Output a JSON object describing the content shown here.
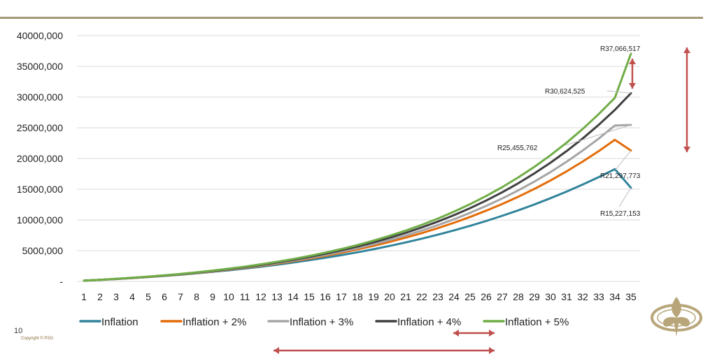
{
  "slide": {
    "page_number": "10",
    "copyright": "Copyright © PSG",
    "colors": {
      "rule": "#a39878",
      "arrow": "#c0504d",
      "logo": "#b8a67a"
    }
  },
  "chart_data": {
    "type": "line",
    "title": "",
    "xlabel": "",
    "ylabel": "",
    "x": [
      1,
      2,
      3,
      4,
      5,
      6,
      7,
      8,
      9,
      10,
      11,
      12,
      13,
      14,
      15,
      16,
      17,
      18,
      19,
      20,
      21,
      22,
      23,
      24,
      25,
      26,
      27,
      28,
      29,
      30,
      31,
      32,
      33,
      34,
      35
    ],
    "ylim": [
      0,
      40000000
    ],
    "yticks": [
      {
        "value": 0,
        "label": "-"
      },
      {
        "value": 5000000,
        "label": "5000,000"
      },
      {
        "value": 10000000,
        "label": "10000,000"
      },
      {
        "value": 15000000,
        "label": "15000,000"
      },
      {
        "value": 20000000,
        "label": "20000,000"
      },
      {
        "value": 25000000,
        "label": "25000,000"
      },
      {
        "value": 30000000,
        "label": "30000,000"
      },
      {
        "value": 35000000,
        "label": "35000,000"
      },
      {
        "value": 40000000,
        "label": "40000,000"
      }
    ],
    "grid": true,
    "legend_position": "bottom",
    "series": [
      {
        "name": "Inflation",
        "color": "#31849b",
        "final_value": 15227153,
        "final_label": "R15,227,153",
        "values": [
          118000,
          245000,
          386000,
          540000,
          709000,
          894000,
          1095000,
          1314000,
          1552000,
          1809000,
          2088000,
          2389000,
          2714000,
          3064000,
          3440000,
          3844000,
          4278000,
          4743000,
          5241000,
          5775000,
          6345000,
          6955000,
          7607000,
          8303000,
          9044000,
          9835000,
          10677000,
          11573000,
          12527000,
          13541000,
          14619000,
          15764000,
          16979000,
          18269000,
          15227153
        ]
      },
      {
        "name": "Inflation + 2%",
        "color": "#e36c09",
        "final_value": 21297773,
        "final_label": "R21,297,773",
        "values": [
          120000,
          252000,
          397000,
          557000,
          732000,
          924000,
          1135000,
          1366000,
          1619000,
          1895000,
          2197000,
          2526000,
          2884000,
          3274000,
          3698000,
          4159000,
          4659000,
          5202000,
          5791000,
          6429000,
          7120000,
          7867000,
          8675000,
          9548000,
          10491000,
          11508000,
          12605000,
          13787000,
          15061000,
          16432000,
          17908000,
          19496000,
          21204000,
          23040000,
          21297773
        ]
      },
      {
        "name": "Inflation + 3%",
        "color": "#a5a5a5",
        "final_value": 25455762,
        "final_label": "R25,455,762",
        "values": [
          121000,
          255000,
          403000,
          566000,
          745000,
          941000,
          1157000,
          1394000,
          1654000,
          1939000,
          2251000,
          2593000,
          2966000,
          3374000,
          3820000,
          4306000,
          4836000,
          5414000,
          6043000,
          6728000,
          7473000,
          8283000,
          9163000,
          10118000,
          11155000,
          12279000,
          13498000,
          14819000,
          16250000,
          17800000,
          19477000,
          21291000,
          23253000,
          25374000,
          25455762
        ]
      },
      {
        "name": "Inflation + 4%",
        "color": "#404040",
        "final_value": 30624525,
        "final_label": "R30,624,525",
        "values": [
          122000,
          259000,
          410000,
          577000,
          761000,
          964000,
          1187000,
          1433000,
          1703000,
          2000000,
          2326000,
          2684000,
          3077000,
          3508000,
          3980000,
          4497000,
          5063000,
          5681000,
          6357000,
          7095000,
          7901000,
          8780000,
          9739000,
          10784000,
          11923000,
          13163000,
          14513000,
          15982000,
          17580000,
          19317000,
          21206000,
          23258000,
          25487000,
          27907000,
          30624525
        ]
      },
      {
        "name": "Inflation + 5%",
        "color": "#70ad47",
        "final_value": 37066517,
        "final_label": "R37,066,517",
        "values": [
          123000,
          262000,
          417000,
          589000,
          779000,
          989000,
          1220000,
          1475000,
          1756000,
          2065000,
          2405000,
          2779000,
          3190000,
          3641000,
          4136000,
          4679000,
          5274000,
          5926000,
          6640000,
          7421000,
          8276000,
          9210000,
          10231000,
          11347000,
          12565000,
          13895000,
          15345000,
          16927000,
          18651000,
          20530000,
          22577000,
          24806000,
          27233000,
          29874000,
          37066517
        ]
      }
    ]
  }
}
